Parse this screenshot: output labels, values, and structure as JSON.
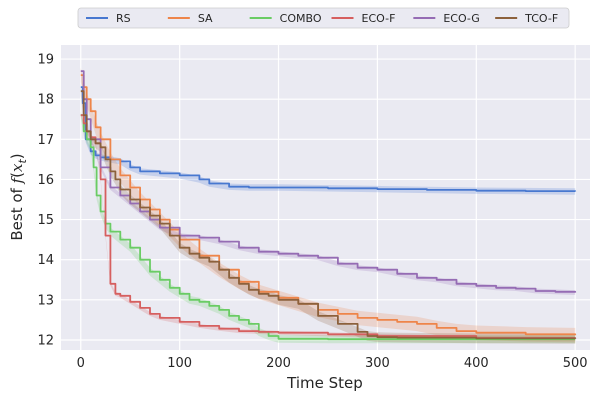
{
  "chart_data": {
    "type": "line",
    "title": "",
    "xlabel": "Time Step",
    "ylabel": "Best of f(x_t)",
    "xlim": [
      -20,
      515
    ],
    "ylim": [
      11.75,
      19.35
    ],
    "xticks": [
      0,
      100,
      200,
      300,
      400,
      500
    ],
    "yticks": [
      12,
      13,
      14,
      15,
      16,
      17,
      18,
      19
    ],
    "grid": true,
    "legend": "top-center",
    "series": [
      {
        "name": "RS",
        "color": "#4878d0",
        "points": [
          [
            0,
            18.3
          ],
          [
            2,
            17.9
          ],
          [
            5,
            17.0
          ],
          [
            10,
            16.7
          ],
          [
            15,
            16.6
          ],
          [
            20,
            16.55
          ],
          [
            30,
            16.5
          ],
          [
            40,
            16.45
          ],
          [
            50,
            16.3
          ],
          [
            60,
            16.2
          ],
          [
            80,
            16.15
          ],
          [
            100,
            16.1
          ],
          [
            120,
            16.0
          ],
          [
            130,
            15.9
          ],
          [
            150,
            15.82
          ],
          [
            170,
            15.8
          ],
          [
            200,
            15.8
          ],
          [
            250,
            15.78
          ],
          [
            300,
            15.76
          ],
          [
            350,
            15.74
          ],
          [
            400,
            15.72
          ],
          [
            450,
            15.71
          ],
          [
            500,
            15.7
          ]
        ],
        "band": 0.08
      },
      {
        "name": "SA",
        "color": "#ee854a",
        "points": [
          [
            0,
            18.6
          ],
          [
            3,
            18.3
          ],
          [
            6,
            18.0
          ],
          [
            10,
            17.7
          ],
          [
            15,
            17.3
          ],
          [
            20,
            17.0
          ],
          [
            30,
            16.5
          ],
          [
            40,
            16.1
          ],
          [
            50,
            15.8
          ],
          [
            60,
            15.5
          ],
          [
            70,
            15.25
          ],
          [
            80,
            15.0
          ],
          [
            90,
            14.75
          ],
          [
            100,
            14.5
          ],
          [
            120,
            14.1
          ],
          [
            140,
            13.75
          ],
          [
            160,
            13.45
          ],
          [
            180,
            13.2
          ],
          [
            200,
            13.05
          ],
          [
            220,
            12.9
          ],
          [
            240,
            12.75
          ],
          [
            260,
            12.65
          ],
          [
            280,
            12.55
          ],
          [
            300,
            12.5
          ],
          [
            320,
            12.45
          ],
          [
            340,
            12.4
          ],
          [
            360,
            12.3
          ],
          [
            380,
            12.22
          ],
          [
            400,
            12.18
          ],
          [
            450,
            12.14
          ],
          [
            500,
            12.12
          ]
        ],
        "band": 0.18
      },
      {
        "name": "COMBO",
        "color": "#6acc64",
        "points": [
          [
            0,
            17.6
          ],
          [
            3,
            17.2
          ],
          [
            6,
            17.0
          ],
          [
            10,
            16.8
          ],
          [
            13,
            16.3
          ],
          [
            16,
            15.6
          ],
          [
            20,
            15.2
          ],
          [
            25,
            14.9
          ],
          [
            30,
            14.7
          ],
          [
            40,
            14.5
          ],
          [
            50,
            14.3
          ],
          [
            60,
            14.0
          ],
          [
            70,
            13.7
          ],
          [
            80,
            13.5
          ],
          [
            90,
            13.3
          ],
          [
            100,
            13.15
          ],
          [
            110,
            13.0
          ],
          [
            120,
            12.95
          ],
          [
            130,
            12.85
          ],
          [
            140,
            12.75
          ],
          [
            150,
            12.6
          ],
          [
            160,
            12.5
          ],
          [
            170,
            12.4
          ],
          [
            180,
            12.2
          ],
          [
            190,
            12.1
          ],
          [
            200,
            12.03
          ],
          [
            250,
            12.02
          ],
          [
            300,
            12.02
          ],
          [
            400,
            12.02
          ],
          [
            500,
            12.02
          ]
        ],
        "band": 0.1
      },
      {
        "name": "ECO-F",
        "color": "#d65f5f",
        "points": [
          [
            0,
            17.6
          ],
          [
            3,
            17.4
          ],
          [
            6,
            17.2
          ],
          [
            10,
            17.05
          ],
          [
            15,
            16.9
          ],
          [
            20,
            16.0
          ],
          [
            25,
            14.6
          ],
          [
            30,
            13.4
          ],
          [
            35,
            13.15
          ],
          [
            40,
            13.1
          ],
          [
            50,
            12.95
          ],
          [
            60,
            12.8
          ],
          [
            70,
            12.65
          ],
          [
            80,
            12.55
          ],
          [
            100,
            12.45
          ],
          [
            120,
            12.35
          ],
          [
            140,
            12.28
          ],
          [
            160,
            12.22
          ],
          [
            180,
            12.2
          ],
          [
            200,
            12.18
          ],
          [
            250,
            12.14
          ],
          [
            300,
            12.1
          ],
          [
            400,
            12.05
          ],
          [
            500,
            12.03
          ]
        ],
        "band": 0.05
      },
      {
        "name": "ECO-G",
        "color": "#956cb4",
        "points": [
          [
            0,
            18.7
          ],
          [
            3,
            18.0
          ],
          [
            6,
            17.5
          ],
          [
            10,
            17.0
          ],
          [
            20,
            16.3
          ],
          [
            30,
            15.8
          ],
          [
            40,
            15.6
          ],
          [
            50,
            15.4
          ],
          [
            60,
            15.2
          ],
          [
            70,
            15.0
          ],
          [
            80,
            14.8
          ],
          [
            100,
            14.6
          ],
          [
            120,
            14.55
          ],
          [
            140,
            14.45
          ],
          [
            160,
            14.3
          ],
          [
            180,
            14.2
          ],
          [
            200,
            14.15
          ],
          [
            220,
            14.1
          ],
          [
            240,
            14.05
          ],
          [
            260,
            13.9
          ],
          [
            280,
            13.8
          ],
          [
            300,
            13.75
          ],
          [
            320,
            13.65
          ],
          [
            340,
            13.55
          ],
          [
            360,
            13.5
          ],
          [
            380,
            13.4
          ],
          [
            400,
            13.35
          ],
          [
            420,
            13.3
          ],
          [
            440,
            13.28
          ],
          [
            460,
            13.22
          ],
          [
            480,
            13.2
          ],
          [
            500,
            13.18
          ]
        ],
        "band": 0.06
      },
      {
        "name": "TCO-F",
        "color": "#8c613c",
        "points": [
          [
            0,
            18.2
          ],
          [
            3,
            17.6
          ],
          [
            6,
            17.2
          ],
          [
            10,
            17.0
          ],
          [
            15,
            16.9
          ],
          [
            20,
            16.8
          ],
          [
            25,
            16.5
          ],
          [
            30,
            16.2
          ],
          [
            35,
            16.0
          ],
          [
            40,
            15.75
          ],
          [
            50,
            15.5
          ],
          [
            60,
            15.3
          ],
          [
            70,
            15.1
          ],
          [
            80,
            14.9
          ],
          [
            90,
            14.6
          ],
          [
            100,
            14.3
          ],
          [
            110,
            14.15
          ],
          [
            120,
            14.05
          ],
          [
            130,
            13.95
          ],
          [
            140,
            13.75
          ],
          [
            150,
            13.55
          ],
          [
            160,
            13.4
          ],
          [
            170,
            13.25
          ],
          [
            180,
            13.15
          ],
          [
            190,
            13.1
          ],
          [
            200,
            13.0
          ],
          [
            220,
            12.9
          ],
          [
            240,
            12.6
          ],
          [
            260,
            12.4
          ],
          [
            280,
            12.2
          ],
          [
            290,
            12.1
          ],
          [
            300,
            12.07
          ],
          [
            320,
            12.06
          ],
          [
            400,
            12.04
          ],
          [
            500,
            12.03
          ]
        ],
        "band": 0.12
      }
    ]
  }
}
